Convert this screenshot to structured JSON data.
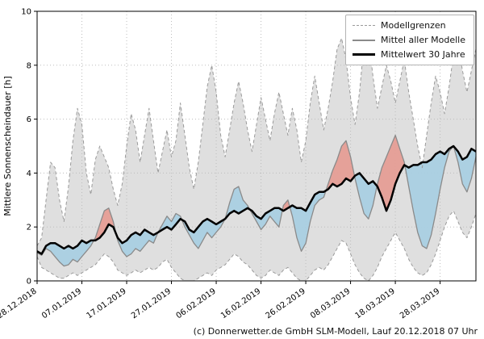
{
  "footer": {
    "credit": "(c) Donnerwetter.de GmbH SLM-Modell, Lauf 20.12.2018 07 Uhr"
  },
  "chart_data": {
    "type": "line",
    "title": "",
    "xlabel": "",
    "ylabel": "Mittlere Sonnenscheindauer [h]",
    "ylim": [
      0,
      10
    ],
    "yticks": [
      0,
      2,
      4,
      6,
      8,
      10
    ],
    "grid": "dotted",
    "x_tick_positions": [
      0,
      10,
      20,
      30,
      40,
      50,
      60,
      70,
      80,
      90
    ],
    "x_tick_labels": [
      "28.12.2018",
      "07.01.2019",
      "17.01.2019",
      "27.01.2019",
      "06.02.2019",
      "16.02.2019",
      "26.02.2019",
      "08.03.2019",
      "18.03.2019",
      "28.03.2019"
    ],
    "legend": {
      "position": "top-right",
      "entries": [
        "Modellgrenzen",
        "Mittel aller Modelle",
        "Mittelwert 30 Jahre"
      ]
    },
    "colors": {
      "envelope_fill": "#d9d9d9",
      "bound_line": "#9a9a9a",
      "model_mean_line": "#8a8a8a",
      "climate_line": "#000000",
      "above_fill": "#e59d95",
      "below_fill": "#a9cfe2",
      "grid": "#bdbdbd",
      "frame": "#000000"
    },
    "x_unit": "days since 28.12.2018",
    "series": [
      {
        "key": "max",
        "name": "Modellgrenzen (Maximum)",
        "values": [
          1.3,
          1.6,
          3.0,
          4.4,
          4.2,
          3.0,
          2.2,
          3.5,
          5.2,
          6.4,
          5.8,
          4.0,
          3.2,
          4.5,
          5.0,
          4.6,
          4.2,
          3.4,
          2.8,
          3.6,
          5.0,
          6.2,
          5.6,
          4.4,
          5.4,
          6.4,
          5.2,
          4.0,
          4.8,
          5.6,
          4.6,
          5.2,
          6.6,
          5.4,
          4.2,
          3.4,
          4.4,
          5.8,
          7.2,
          8.0,
          7.0,
          5.4,
          4.6,
          5.6,
          6.6,
          7.4,
          6.6,
          5.6,
          4.8,
          5.8,
          6.8,
          6.0,
          5.2,
          6.2,
          7.0,
          6.2,
          5.4,
          6.4,
          5.6,
          4.4,
          5.2,
          6.6,
          7.6,
          6.6,
          5.6,
          6.4,
          7.4,
          8.6,
          9.0,
          8.2,
          6.8,
          5.8,
          7.0,
          8.8,
          9.0,
          7.6,
          6.4,
          7.2,
          8.0,
          7.4,
          6.6,
          7.4,
          8.2,
          7.0,
          6.0,
          5.0,
          4.2,
          5.4,
          6.6,
          7.6,
          7.0,
          6.2,
          7.2,
          8.4,
          8.8,
          7.8,
          7.0,
          7.8,
          8.6
        ]
      },
      {
        "key": "min",
        "name": "Modellgrenzen (Minimum)",
        "values": [
          0.9,
          0.5,
          0.4,
          0.3,
          0.2,
          0.1,
          0.1,
          0.2,
          0.3,
          0.2,
          0.3,
          0.4,
          0.5,
          0.6,
          0.8,
          1.0,
          0.9,
          0.7,
          0.4,
          0.3,
          0.2,
          0.3,
          0.4,
          0.3,
          0.4,
          0.5,
          0.4,
          0.5,
          0.7,
          0.8,
          0.5,
          0.3,
          0.1,
          0.0,
          0.0,
          0.0,
          0.1,
          0.2,
          0.3,
          0.2,
          0.4,
          0.5,
          0.6,
          0.8,
          1.0,
          0.9,
          0.7,
          0.6,
          0.4,
          0.2,
          0.1,
          0.2,
          0.4,
          0.3,
          0.2,
          0.4,
          0.5,
          0.3,
          0.1,
          0.0,
          0.0,
          0.2,
          0.4,
          0.5,
          0.4,
          0.6,
          0.9,
          1.2,
          1.5,
          1.4,
          1.0,
          0.6,
          0.3,
          0.1,
          0.0,
          0.2,
          0.5,
          0.9,
          1.2,
          1.5,
          1.8,
          1.5,
          1.2,
          0.8,
          0.5,
          0.3,
          0.2,
          0.3,
          0.6,
          1.0,
          1.5,
          2.0,
          2.4,
          2.6,
          2.2,
          1.8,
          1.6,
          2.0,
          2.5
        ]
      },
      {
        "key": "model",
        "name": "Mittel aller Modelle",
        "values": [
          1.05,
          0.95,
          1.2,
          1.1,
          0.9,
          0.7,
          0.55,
          0.6,
          0.8,
          0.7,
          0.9,
          1.1,
          1.3,
          1.6,
          2.1,
          2.6,
          2.7,
          2.2,
          1.5,
          1.1,
          0.9,
          1.0,
          1.2,
          1.1,
          1.3,
          1.5,
          1.4,
          1.8,
          2.1,
          2.4,
          2.2,
          2.5,
          2.4,
          2.0,
          1.7,
          1.4,
          1.2,
          1.5,
          1.8,
          1.6,
          1.8,
          2.0,
          2.3,
          2.9,
          3.4,
          3.5,
          3.0,
          2.8,
          2.5,
          2.2,
          1.9,
          2.1,
          2.4,
          2.2,
          2.0,
          2.8,
          3.0,
          2.4,
          1.6,
          1.1,
          1.4,
          2.2,
          2.8,
          3.0,
          3.1,
          3.6,
          4.1,
          4.5,
          5.0,
          5.2,
          4.6,
          3.8,
          3.1,
          2.5,
          2.3,
          2.8,
          3.6,
          4.2,
          4.6,
          5.0,
          5.4,
          4.9,
          4.4,
          3.5,
          2.6,
          1.8,
          1.3,
          1.2,
          1.7,
          2.5,
          3.4,
          4.2,
          4.8,
          5.0,
          4.4,
          3.6,
          3.3,
          3.8,
          4.6
        ]
      },
      {
        "key": "climate",
        "name": "Mittelwert 30 Jahre",
        "values": [
          1.1,
          1.0,
          1.3,
          1.4,
          1.4,
          1.3,
          1.2,
          1.3,
          1.2,
          1.3,
          1.5,
          1.4,
          1.5,
          1.5,
          1.6,
          1.8,
          2.1,
          2.0,
          1.6,
          1.4,
          1.5,
          1.7,
          1.8,
          1.7,
          1.9,
          1.8,
          1.7,
          1.8,
          1.9,
          2.0,
          1.9,
          2.1,
          2.3,
          2.2,
          1.9,
          1.8,
          2.0,
          2.2,
          2.3,
          2.2,
          2.1,
          2.2,
          2.3,
          2.5,
          2.6,
          2.5,
          2.6,
          2.7,
          2.6,
          2.4,
          2.3,
          2.5,
          2.6,
          2.7,
          2.7,
          2.6,
          2.7,
          2.8,
          2.7,
          2.7,
          2.6,
          2.9,
          3.2,
          3.3,
          3.3,
          3.4,
          3.6,
          3.5,
          3.6,
          3.8,
          3.7,
          3.9,
          4.0,
          3.8,
          3.6,
          3.7,
          3.5,
          3.1,
          2.6,
          3.0,
          3.6,
          4.0,
          4.3,
          4.2,
          4.3,
          4.3,
          4.4,
          4.4,
          4.5,
          4.7,
          4.8,
          4.7,
          4.9,
          5.0,
          4.8,
          4.5,
          4.6,
          4.9,
          4.8
        ]
      }
    ]
  }
}
